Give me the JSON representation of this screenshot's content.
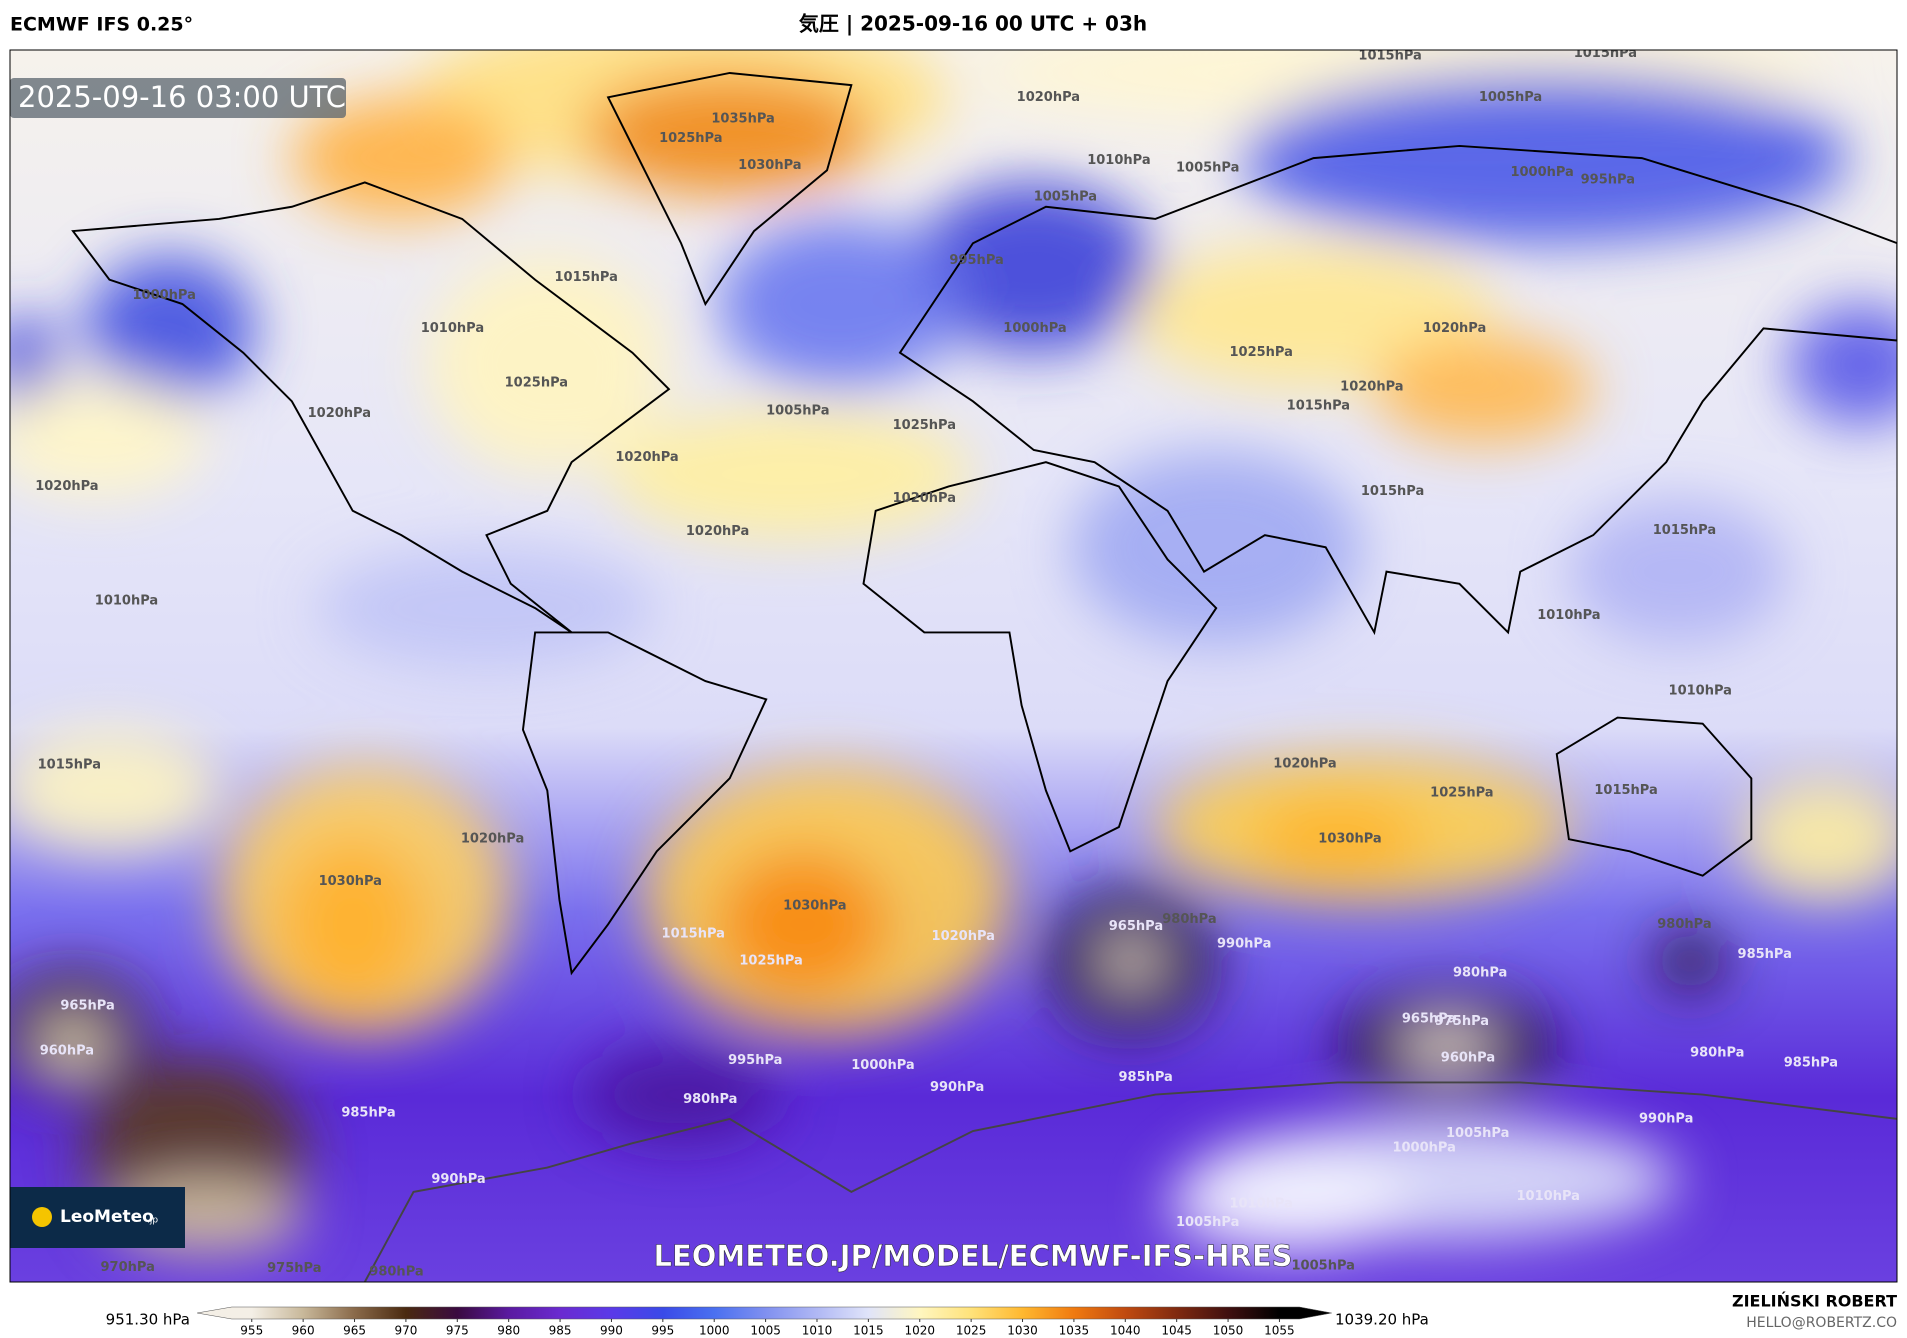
{
  "header": {
    "model": "ECMWF IFS 0.25°",
    "title": "気圧 | 2025-09-16 00 UTC + 03h"
  },
  "map": {
    "timestamp": "2025-09-16 03:00 UTC",
    "watermark": "LEOMETEO.JP/MODEL/ECMWF-IFS-HRES",
    "logo": "LeoMeteo",
    "logo_suffix": ".jp",
    "contour_labels": [
      "1015hPa",
      "1015hPa",
      "1020hPa",
      "1005hPa",
      "1035hPa",
      "1025hPa",
      "1030hPa",
      "1010hPa",
      "1005hPa",
      "1000hPa",
      "995hPa",
      "1005hPa",
      "1015hPa",
      "995hPa",
      "1000hPa",
      "1010hPa",
      "1000hPa",
      "1020hPa",
      "1025hPa",
      "1020hPa",
      "1015hPa",
      "1025hPa",
      "1020hPa",
      "1005hPa",
      "1025hPa",
      "1020hPa",
      "1020hPa",
      "1020hPa",
      "1020hPa",
      "1015hPa",
      "1015hPa",
      "1010hPa",
      "1010hPa",
      "1010hPa",
      "1015hPa",
      "1020hPa",
      "1025hPa",
      "1030hPa",
      "1015hPa",
      "1020hPa",
      "1030hPa",
      "1030hPa",
      "1025hPa",
      "1015hPa",
      "1020hPa",
      "965hPa",
      "980hPa",
      "990hPa",
      "980hPa",
      "985hPa",
      "980hPa",
      "975hPa",
      "965hPa",
      "960hPa",
      "980hPa",
      "985hPa",
      "965hPa",
      "960hPa",
      "995hPa",
      "980hPa",
      "1000hPa",
      "990hPa",
      "985hPa",
      "985hPa",
      "990hPa",
      "1000hPa",
      "1005hPa",
      "1010hPa",
      "1005hPa",
      "1010hPa",
      "970hPa",
      "975hPa",
      "980hPa",
      "1005hPa",
      "990hPa"
    ]
  },
  "colorbar": {
    "min_label": "951.30 hPa",
    "max_label": "1039.20 hPa",
    "ticks": [
      955,
      960,
      965,
      970,
      975,
      980,
      985,
      990,
      995,
      1000,
      1005,
      1010,
      1015,
      1020,
      1025,
      1030,
      1035,
      1040,
      1045,
      1050,
      1055
    ],
    "colors": [
      "#f4efe6",
      "#c8b89a",
      "#8a6a4a",
      "#4a2a10",
      "#3a0a40",
      "#5a1aa0",
      "#6a2ad0",
      "#5a3ae8",
      "#3a4ae8",
      "#4a70f0",
      "#8090f0",
      "#b0b8f4",
      "#e0e4fa",
      "#fff6c0",
      "#ffe27a",
      "#ffb830",
      "#f07a10",
      "#c04a10",
      "#802a10",
      "#401010",
      "#000000"
    ]
  },
  "credit": {
    "author": "ZIELIŃSKI ROBERT",
    "email": "HELLO@ROBERTZ.CO"
  }
}
